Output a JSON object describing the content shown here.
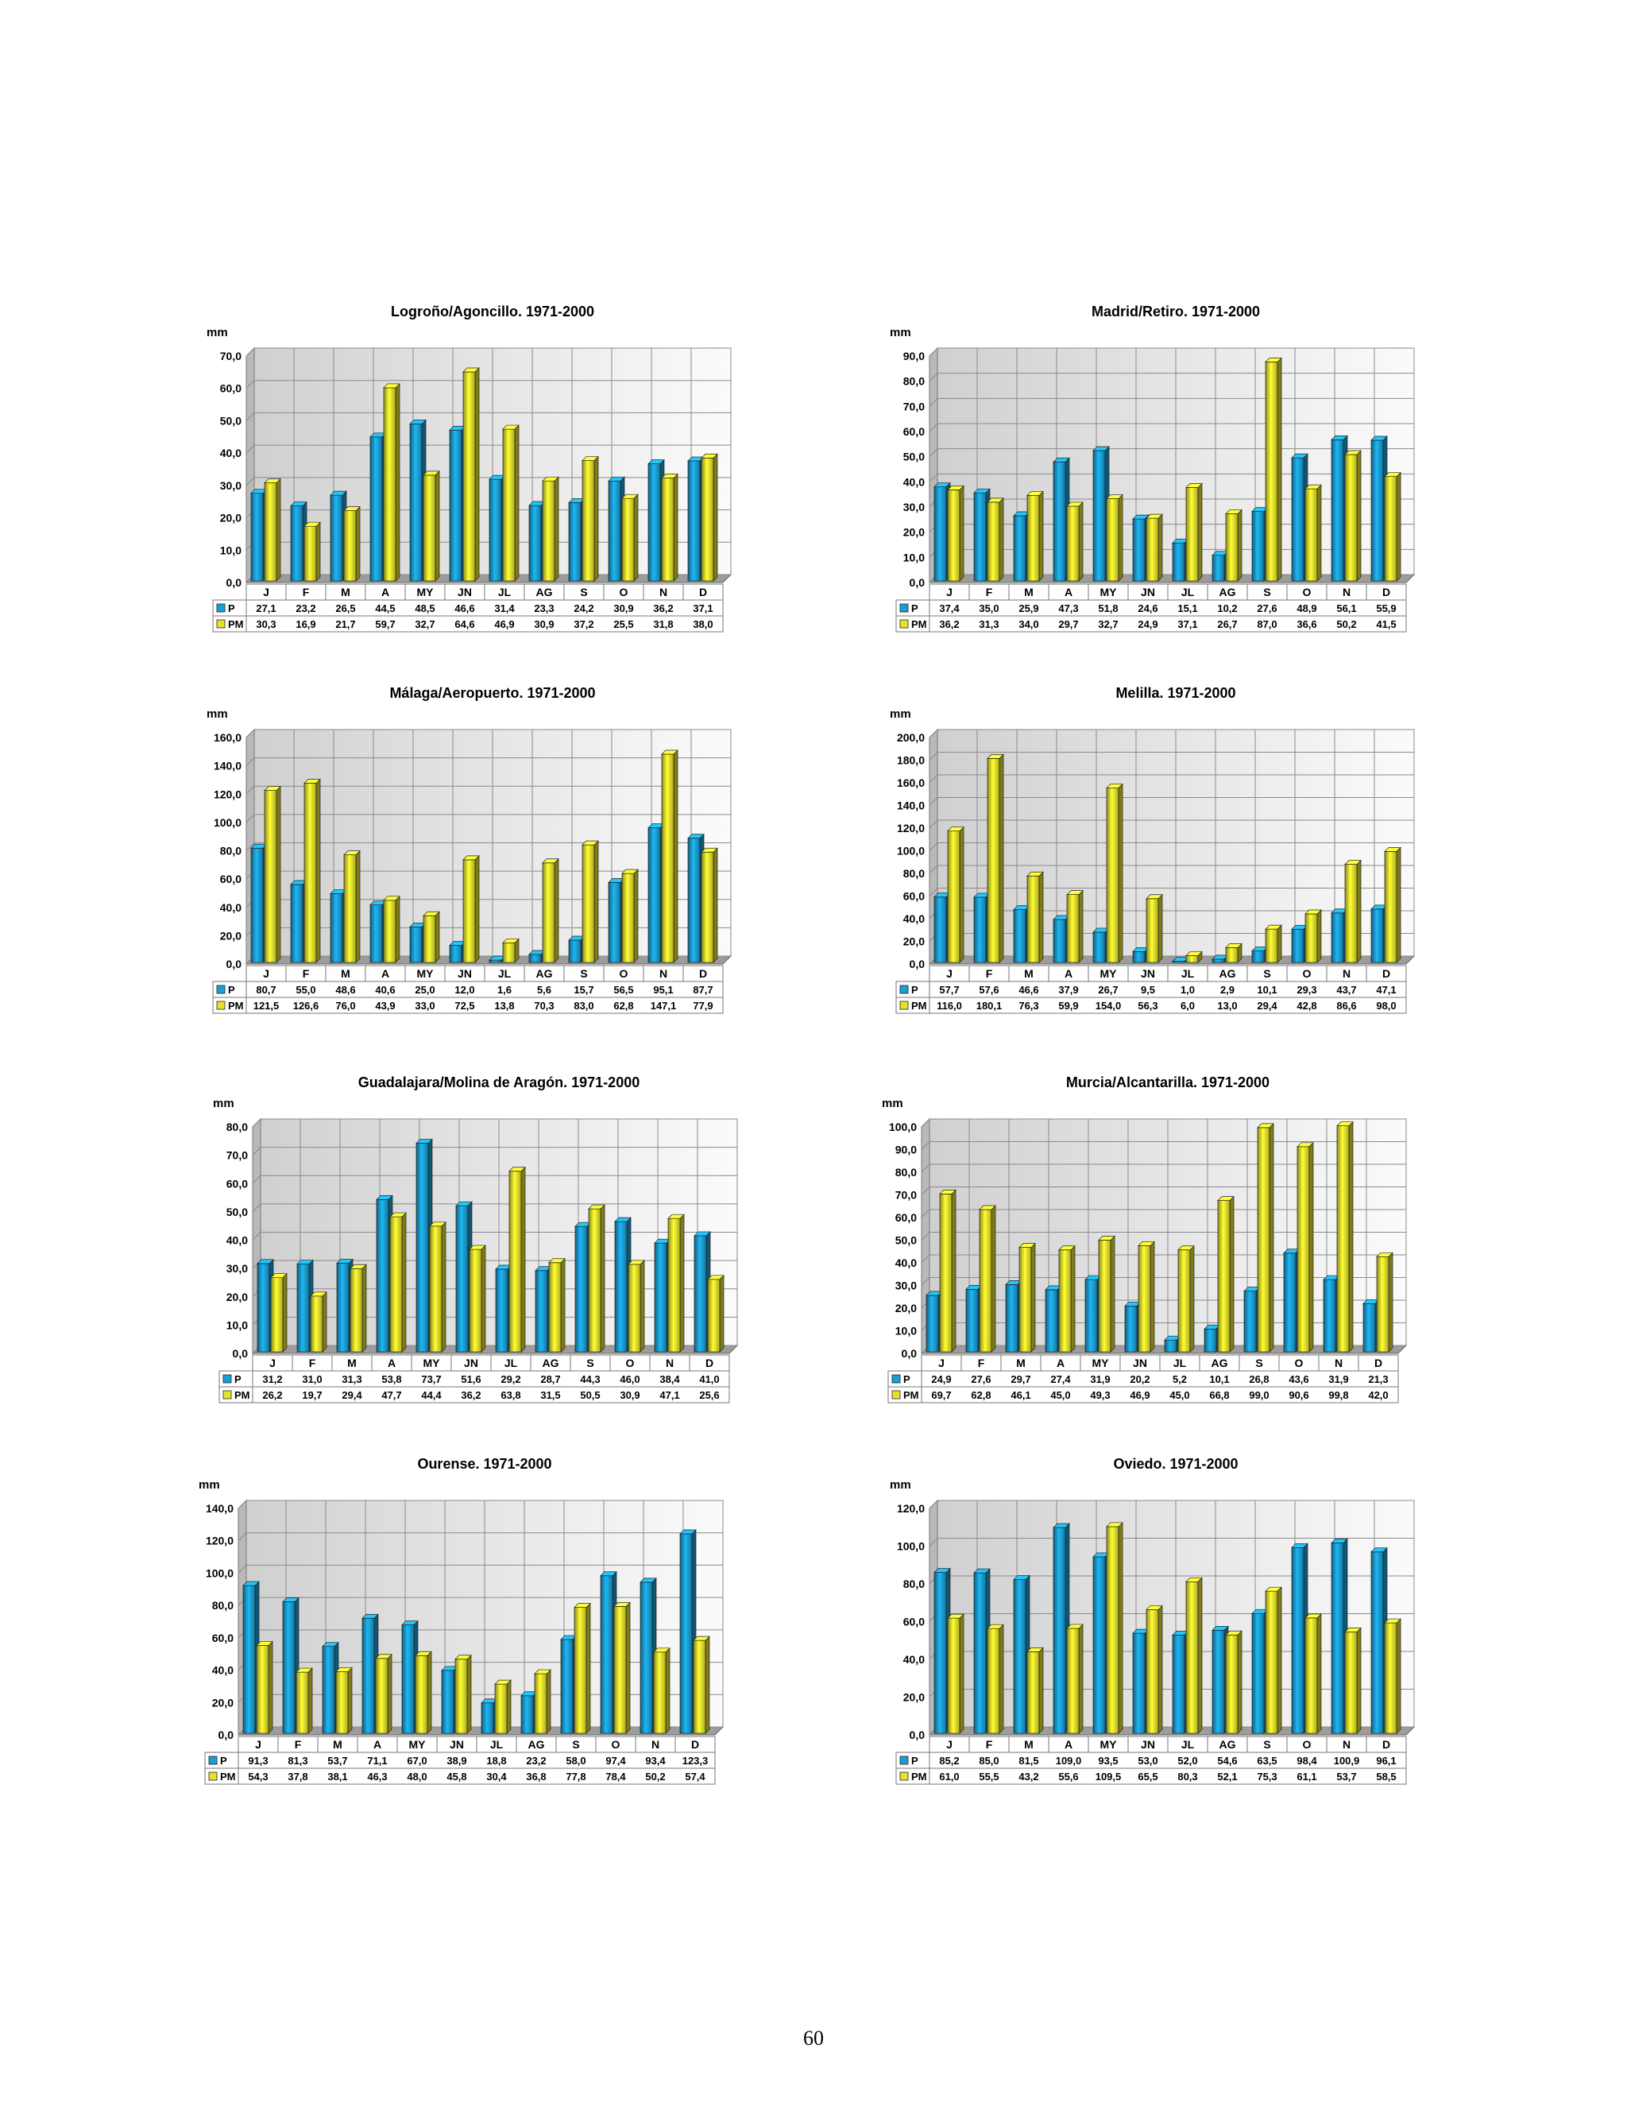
{
  "page_number": "60",
  "months": [
    "J",
    "F",
    "M",
    "A",
    "MY",
    "JN",
    "JL",
    "AG",
    "S",
    "O",
    "N",
    "D"
  ],
  "unit": "mm",
  "colors": {
    "P": "#1a9fd4",
    "PM": "#e6e22c"
  },
  "chart_data": [
    {
      "type": "bar",
      "title": "Logroño/Agoncillo. 1971-2000",
      "ylabel": "mm",
      "ylim": [
        0,
        70
      ],
      "yticks": [
        "0,0",
        "10,0",
        "20,0",
        "30,0",
        "40,0",
        "50,0",
        "60,0",
        "70,0"
      ],
      "categories": [
        "J",
        "F",
        "M",
        "A",
        "MY",
        "JN",
        "JL",
        "AG",
        "S",
        "O",
        "N",
        "D"
      ],
      "series": [
        {
          "name": "P",
          "values": [
            27.1,
            23.2,
            26.5,
            44.5,
            48.5,
            46.6,
            31.4,
            23.3,
            24.2,
            30.9,
            36.2,
            37.1
          ],
          "labels": [
            "27,1",
            "23,2",
            "26,5",
            "44,5",
            "48,5",
            "46,6",
            "31,4",
            "23,3",
            "24,2",
            "30,9",
            "36,2",
            "37,1"
          ]
        },
        {
          "name": "PM",
          "values": [
            30.3,
            16.9,
            21.7,
            59.7,
            32.7,
            64.6,
            46.9,
            30.9,
            37.2,
            25.5,
            31.8,
            38.0
          ],
          "labels": [
            "30,3",
            "16,9",
            "21,7",
            "59,7",
            "32,7",
            "64,6",
            "46,9",
            "30,9",
            "37,2",
            "25,5",
            "31,8",
            "38,0"
          ]
        }
      ]
    },
    {
      "type": "bar",
      "title": "Madrid/Retiro. 1971-2000",
      "ylabel": "mm",
      "ylim": [
        0,
        90
      ],
      "yticks": [
        "0,0",
        "10,0",
        "20,0",
        "30,0",
        "40,0",
        "50,0",
        "60,0",
        "70,0",
        "80,0",
        "90,0"
      ],
      "categories": [
        "J",
        "F",
        "M",
        "A",
        "MY",
        "JN",
        "JL",
        "AG",
        "S",
        "O",
        "N",
        "D"
      ],
      "series": [
        {
          "name": "P",
          "values": [
            37.4,
            35.0,
            25.9,
            47.3,
            51.8,
            24.6,
            15.1,
            10.2,
            27.6,
            48.9,
            56.1,
            55.9
          ],
          "labels": [
            "37,4",
            "35,0",
            "25,9",
            "47,3",
            "51,8",
            "24,6",
            "15,1",
            "10,2",
            "27,6",
            "48,9",
            "56,1",
            "55,9"
          ]
        },
        {
          "name": "PM",
          "values": [
            36.2,
            31.3,
            34.0,
            29.7,
            32.7,
            24.9,
            37.1,
            26.7,
            87.0,
            36.6,
            50.2,
            41.5
          ],
          "labels": [
            "36,2",
            "31,3",
            "34,0",
            "29,7",
            "32,7",
            "24,9",
            "37,1",
            "26,7",
            "87,0",
            "36,6",
            "50,2",
            "41,5"
          ]
        }
      ]
    },
    {
      "type": "bar",
      "title": "Málaga/Aeropuerto. 1971-2000",
      "ylabel": "mm",
      "ylim": [
        0,
        160
      ],
      "yticks": [
        "0,0",
        "20,0",
        "40,0",
        "60,0",
        "80,0",
        "100,0",
        "120,0",
        "140,0",
        "160,0"
      ],
      "categories": [
        "J",
        "F",
        "M",
        "A",
        "MY",
        "JN",
        "JL",
        "AG",
        "S",
        "O",
        "N",
        "D"
      ],
      "series": [
        {
          "name": "P",
          "values": [
            80.7,
            55.0,
            48.6,
            40.6,
            25.0,
            12.0,
            1.6,
            5.6,
            15.7,
            56.5,
            95.1,
            87.7
          ],
          "labels": [
            "80,7",
            "55,0",
            "48,6",
            "40,6",
            "25,0",
            "12,0",
            "1,6",
            "5,6",
            "15,7",
            "56,5",
            "95,1",
            "87,7"
          ]
        },
        {
          "name": "PM",
          "values": [
            121.5,
            126.6,
            76.0,
            43.9,
            33.0,
            72.5,
            13.8,
            70.3,
            83.0,
            62.8,
            147.1,
            77.9
          ],
          "labels": [
            "121,5",
            "126,6",
            "76,0",
            "43,9",
            "33,0",
            "72,5",
            "13,8",
            "70,3",
            "83,0",
            "62,8",
            "147,1",
            "77,9"
          ]
        }
      ]
    },
    {
      "type": "bar",
      "title": "Melilla. 1971-2000",
      "ylabel": "mm",
      "ylim": [
        0,
        200
      ],
      "yticks": [
        "0,0",
        "20,0",
        "40,0",
        "60,0",
        "80,0",
        "100,0",
        "120,0",
        "140,0",
        "160,0",
        "180,0",
        "200,0"
      ],
      "categories": [
        "J",
        "F",
        "M",
        "A",
        "MY",
        "JN",
        "JL",
        "AG",
        "S",
        "O",
        "N",
        "D"
      ],
      "series": [
        {
          "name": "P",
          "values": [
            57.7,
            57.6,
            46.6,
            37.9,
            26.7,
            9.5,
            1.0,
            2.9,
            10.1,
            29.3,
            43.7,
            47.1
          ],
          "labels": [
            "57,7",
            "57,6",
            "46,6",
            "37,9",
            "26,7",
            "9,5",
            "1,0",
            "2,9",
            "10,1",
            "29,3",
            "43,7",
            "47,1"
          ]
        },
        {
          "name": "PM",
          "values": [
            116.0,
            180.1,
            76.3,
            59.9,
            154.0,
            56.3,
            6.0,
            13.0,
            29.4,
            42.8,
            86.6,
            98.0
          ],
          "labels": [
            "116,0",
            "180,1",
            "76,3",
            "59,9",
            "154,0",
            "56,3",
            "6,0",
            "13,0",
            "29,4",
            "42,8",
            "86,6",
            "98,0"
          ]
        }
      ]
    },
    {
      "type": "bar",
      "title": "Guadalajara/Molina de Aragón. 1971-2000",
      "ylabel": "mm",
      "ylim": [
        0,
        80
      ],
      "yticks": [
        "0,0",
        "10,0",
        "20,0",
        "30,0",
        "40,0",
        "50,0",
        "60,0",
        "70,0",
        "80,0"
      ],
      "categories": [
        "J",
        "F",
        "M",
        "A",
        "MY",
        "JN",
        "JL",
        "AG",
        "S",
        "O",
        "N",
        "D"
      ],
      "series": [
        {
          "name": "P",
          "values": [
            31.2,
            31.0,
            31.3,
            53.8,
            73.7,
            51.6,
            29.2,
            28.7,
            44.3,
            46.0,
            38.4,
            41.0
          ],
          "labels": [
            "31,2",
            "31,0",
            "31,3",
            "53,8",
            "73,7",
            "51,6",
            "29,2",
            "28,7",
            "44,3",
            "46,0",
            "38,4",
            "41,0"
          ]
        },
        {
          "name": "PM",
          "values": [
            26.2,
            19.7,
            29.4,
            47.7,
            44.4,
            36.2,
            63.8,
            31.5,
            50.5,
            30.9,
            47.1,
            25.6
          ],
          "labels": [
            "26,2",
            "19,7",
            "29,4",
            "47,7",
            "44,4",
            "36,2",
            "63,8",
            "31,5",
            "50,5",
            "30,9",
            "47,1",
            "25,6"
          ]
        }
      ]
    },
    {
      "type": "bar",
      "title": "Murcia/Alcantarilla. 1971-2000",
      "ylabel": "mm",
      "ylim": [
        0,
        100
      ],
      "yticks": [
        "0,0",
        "10,0",
        "20,0",
        "30,0",
        "40,0",
        "50,0",
        "60,0",
        "70,0",
        "80,0",
        "90,0",
        "100,0"
      ],
      "categories": [
        "J",
        "F",
        "M",
        "A",
        "MY",
        "JN",
        "JL",
        "AG",
        "S",
        "O",
        "N",
        "D"
      ],
      "series": [
        {
          "name": "P",
          "values": [
            24.9,
            27.6,
            29.7,
            27.4,
            31.9,
            20.2,
            5.2,
            10.1,
            26.8,
            43.6,
            31.9,
            21.3
          ],
          "labels": [
            "24,9",
            "27,6",
            "29,7",
            "27,4",
            "31,9",
            "20,2",
            "5,2",
            "10,1",
            "26,8",
            "43,6",
            "31,9",
            "21,3"
          ]
        },
        {
          "name": "PM",
          "values": [
            69.7,
            62.8,
            46.1,
            45.0,
            49.3,
            46.9,
            45.0,
            66.8,
            99.0,
            90.6,
            99.8,
            42.0
          ],
          "labels": [
            "69,7",
            "62,8",
            "46,1",
            "45,0",
            "49,3",
            "46,9",
            "45,0",
            "66,8",
            "99,0",
            "90,6",
            "99,8",
            "42,0"
          ]
        }
      ]
    },
    {
      "type": "bar",
      "title": "Ourense. 1971-2000",
      "ylabel": "mm",
      "ylim": [
        0,
        140
      ],
      "yticks": [
        "0,0",
        "20,0",
        "40,0",
        "60,0",
        "80,0",
        "100,0",
        "120,0",
        "140,0"
      ],
      "categories": [
        "J",
        "F",
        "M",
        "A",
        "MY",
        "JN",
        "JL",
        "AG",
        "S",
        "O",
        "N",
        "D"
      ],
      "series": [
        {
          "name": "P",
          "values": [
            91.3,
            81.3,
            53.7,
            71.1,
            67.0,
            38.9,
            18.8,
            23.2,
            58.0,
            97.4,
            93.4,
            123.3
          ],
          "labels": [
            "91,3",
            "81,3",
            "53,7",
            "71,1",
            "67,0",
            "38,9",
            "18,8",
            "23,2",
            "58,0",
            "97,4",
            "93,4",
            "123,3"
          ]
        },
        {
          "name": "PM",
          "values": [
            54.3,
            37.8,
            38.1,
            46.3,
            48.0,
            45.8,
            30.4,
            36.8,
            77.8,
            78.4,
            50.2,
            57.4
          ],
          "labels": [
            "54,3",
            "37,8",
            "38,1",
            "46,3",
            "48,0",
            "45,8",
            "30,4",
            "36,8",
            "77,8",
            "78,4",
            "50,2",
            "57,4"
          ]
        }
      ]
    },
    {
      "type": "bar",
      "title": "Oviedo. 1971-2000",
      "ylabel": "mm",
      "ylim": [
        0,
        120
      ],
      "yticks": [
        "0,0",
        "20,0",
        "40,0",
        "60,0",
        "80,0",
        "100,0",
        "120,0"
      ],
      "categories": [
        "J",
        "F",
        "M",
        "A",
        "MY",
        "JN",
        "JL",
        "AG",
        "S",
        "O",
        "N",
        "D"
      ],
      "series": [
        {
          "name": "P",
          "values": [
            85.2,
            85.0,
            81.5,
            109.0,
            93.5,
            53.0,
            52.0,
            54.6,
            63.5,
            98.4,
            100.9,
            96.1
          ],
          "labels": [
            "85,2",
            "85,0",
            "81,5",
            "109,0",
            "93,5",
            "53,0",
            "52,0",
            "54,6",
            "63,5",
            "98,4",
            "100,9",
            "96,1"
          ]
        },
        {
          "name": "PM",
          "values": [
            61.0,
            55.5,
            43.2,
            55.6,
            109.5,
            65.5,
            80.3,
            52.1,
            75.3,
            61.1,
            53.7,
            58.5
          ],
          "labels": [
            "61,0",
            "55,5",
            "43,2",
            "55,6",
            "109,5",
            "65,5",
            "80,3",
            "52,1",
            "75,3",
            "61,1",
            "53,7",
            "58,5"
          ]
        }
      ]
    }
  ]
}
